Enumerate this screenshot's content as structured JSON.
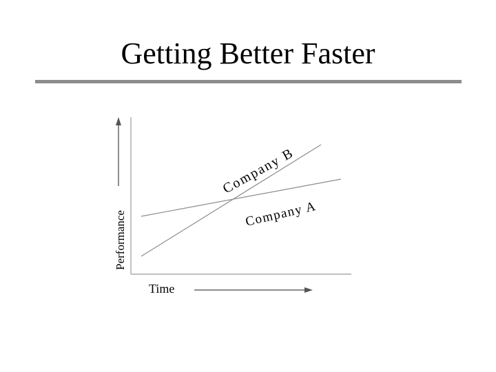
{
  "slide": {
    "title": "Getting Better Faster",
    "rule_color": "#8c8c8c"
  },
  "chart_data": {
    "type": "line",
    "xlabel": "Time",
    "ylabel": "Performance",
    "grid": false,
    "axis_arrows": true,
    "xlim": [
      0,
      10
    ],
    "ylim": [
      0,
      10
    ],
    "series": [
      {
        "name": "Company A",
        "x": [
          0,
          10
        ],
        "y": [
          3.8,
          6.5
        ],
        "color": "#8c8c8c"
      },
      {
        "name": "Company B",
        "x": [
          0,
          9
        ],
        "y": [
          0.9,
          9.0
        ],
        "color": "#8c8c8c"
      }
    ]
  }
}
